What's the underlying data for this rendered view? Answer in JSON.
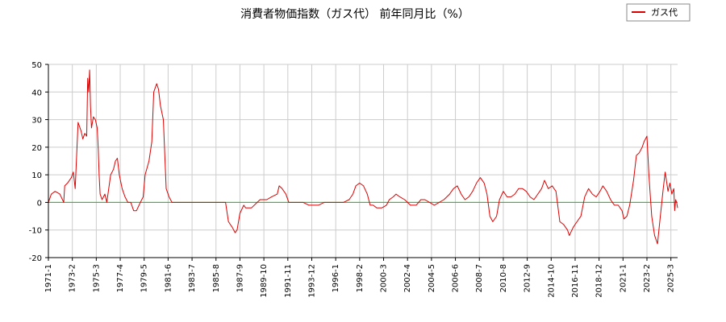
{
  "chart_data": {
    "type": "line",
    "title": "消費者物価指数（ガス代） 前年同月比（%）",
    "xlabel": "",
    "ylabel": "",
    "ylim": [
      -20,
      50
    ],
    "yticks": [
      -20,
      -10,
      0,
      10,
      20,
      30,
      40,
      50
    ],
    "xticks": [
      "1971-1",
      "1973-2",
      "1975-3",
      "1977-4",
      "1979-5",
      "1981-6",
      "1983-7",
      "1985-8",
      "1987-9",
      "1989-10",
      "1991-11",
      "1993-12",
      "1996-1",
      "1998-2",
      "2000-3",
      "2002-4",
      "2004-5",
      "2006-6",
      "2008-7",
      "2010-8",
      "2012-9",
      "2014-10",
      "2016-11",
      "2018-12",
      "2021-1",
      "2023-2",
      "2025-3"
    ],
    "xrange": [
      "1971-1",
      "2025-10"
    ],
    "grid": true,
    "legend_position": "top-right",
    "zero_line_color": "#00cc00",
    "series": [
      {
        "name": "ガス代",
        "color": "#dd0000",
        "points": [
          [
            "1971-1",
            0
          ],
          [
            "1971-4",
            3
          ],
          [
            "1971-8",
            4
          ],
          [
            "1972-1",
            3
          ],
          [
            "1972-5",
            0
          ],
          [
            "1972-6",
            6
          ],
          [
            "1972-9",
            7
          ],
          [
            "1973-1",
            9
          ],
          [
            "1973-3",
            11
          ],
          [
            "1973-5",
            5
          ],
          [
            "1973-8",
            29
          ],
          [
            "1973-11",
            26
          ],
          [
            "1974-1",
            23
          ],
          [
            "1974-3",
            25
          ],
          [
            "1974-5",
            24
          ],
          [
            "1974-6",
            45
          ],
          [
            "1974-7",
            40
          ],
          [
            "1974-8",
            48
          ],
          [
            "1974-9",
            35
          ],
          [
            "1974-10",
            27
          ],
          [
            "1974-12",
            31
          ],
          [
            "1975-2",
            30
          ],
          [
            "1975-4",
            27
          ],
          [
            "1975-5",
            20
          ],
          [
            "1975-6",
            10
          ],
          [
            "1975-7",
            3
          ],
          [
            "1975-9",
            1
          ],
          [
            "1975-12",
            3
          ],
          [
            "1976-2",
            0
          ],
          [
            "1976-4",
            5
          ],
          [
            "1976-6",
            10
          ],
          [
            "1976-9",
            12
          ],
          [
            "1976-11",
            15
          ],
          [
            "1977-1",
            16
          ],
          [
            "1977-3",
            10
          ],
          [
            "1977-6",
            5
          ],
          [
            "1977-9",
            2
          ],
          [
            "1977-12",
            0
          ],
          [
            "1978-3",
            0
          ],
          [
            "1978-6",
            -3
          ],
          [
            "1978-9",
            -3
          ],
          [
            "1979-1",
            0
          ],
          [
            "1979-4",
            2
          ],
          [
            "1979-6",
            10
          ],
          [
            "1979-10",
            15
          ],
          [
            "1980-1",
            22
          ],
          [
            "1980-3",
            40
          ],
          [
            "1980-6",
            43
          ],
          [
            "1980-8",
            41
          ],
          [
            "1980-10",
            35
          ],
          [
            "1981-1",
            30
          ],
          [
            "1981-4",
            5
          ],
          [
            "1981-7",
            2
          ],
          [
            "1981-10",
            0
          ],
          [
            "1982-6",
            0
          ],
          [
            "1983-7",
            0
          ],
          [
            "1984-1",
            0
          ],
          [
            "1985-1",
            0
          ],
          [
            "1986-6",
            0
          ],
          [
            "1986-9",
            -7
          ],
          [
            "1987-1",
            -9
          ],
          [
            "1987-4",
            -11
          ],
          [
            "1987-6",
            -10
          ],
          [
            "1987-9",
            -4
          ],
          [
            "1988-1",
            -1
          ],
          [
            "1988-3",
            -2
          ],
          [
            "1988-9",
            -2
          ],
          [
            "1989-3",
            0
          ],
          [
            "1989-6",
            1
          ],
          [
            "1990-1",
            1
          ],
          [
            "1990-6",
            2
          ],
          [
            "1990-12",
            3
          ],
          [
            "1991-2",
            6
          ],
          [
            "1991-5",
            5
          ],
          [
            "1991-9",
            3
          ],
          [
            "1991-12",
            0
          ],
          [
            "1992-3",
            0
          ],
          [
            "1992-9",
            0
          ],
          [
            "1993-3",
            0
          ],
          [
            "1993-9",
            -1
          ],
          [
            "1994-1",
            -1
          ],
          [
            "1994-7",
            -1
          ],
          [
            "1995-1",
            0
          ],
          [
            "1995-6",
            0
          ],
          [
            "1996-1",
            0
          ],
          [
            "1996-9",
            0
          ],
          [
            "1997-3",
            1
          ],
          [
            "1997-7",
            3
          ],
          [
            "1997-10",
            6
          ],
          [
            "1998-2",
            7
          ],
          [
            "1998-6",
            6
          ],
          [
            "1998-10",
            3
          ],
          [
            "1999-1",
            -1
          ],
          [
            "1999-4",
            -1
          ],
          [
            "1999-8",
            -2
          ],
          [
            "2000-1",
            -2
          ],
          [
            "2000-6",
            -1
          ],
          [
            "2000-9",
            1
          ],
          [
            "2001-1",
            2
          ],
          [
            "2001-4",
            3
          ],
          [
            "2001-8",
            2
          ],
          [
            "2002-1",
            1
          ],
          [
            "2002-4",
            0
          ],
          [
            "2002-7",
            -1
          ],
          [
            "2003-1",
            -1
          ],
          [
            "2003-6",
            1
          ],
          [
            "2003-10",
            1
          ],
          [
            "2004-3",
            0
          ],
          [
            "2004-8",
            -1
          ],
          [
            "2005-1",
            0
          ],
          [
            "2005-6",
            1
          ],
          [
            "2005-12",
            3
          ],
          [
            "2006-4",
            5
          ],
          [
            "2006-8",
            6
          ],
          [
            "2006-12",
            3
          ],
          [
            "2007-4",
            1
          ],
          [
            "2007-8",
            2
          ],
          [
            "2007-12",
            4
          ],
          [
            "2008-4",
            7
          ],
          [
            "2008-8",
            9
          ],
          [
            "2008-12",
            7
          ],
          [
            "2009-3",
            3
          ],
          [
            "2009-6",
            -5
          ],
          [
            "2009-9",
            -7
          ],
          [
            "2010-1",
            -5
          ],
          [
            "2010-4",
            1
          ],
          [
            "2010-8",
            4
          ],
          [
            "2010-12",
            2
          ],
          [
            "2011-4",
            2
          ],
          [
            "2011-8",
            3
          ],
          [
            "2011-12",
            5
          ],
          [
            "2012-4",
            5
          ],
          [
            "2012-8",
            4
          ],
          [
            "2012-12",
            2
          ],
          [
            "2013-4",
            1
          ],
          [
            "2013-8",
            3
          ],
          [
            "2013-12",
            5
          ],
          [
            "2014-3",
            8
          ],
          [
            "2014-7",
            5
          ],
          [
            "2014-11",
            6
          ],
          [
            "2015-3",
            4
          ],
          [
            "2015-7",
            -7
          ],
          [
            "2015-11",
            -8
          ],
          [
            "2016-3",
            -10
          ],
          [
            "2016-5",
            -12
          ],
          [
            "2016-9",
            -9
          ],
          [
            "2017-1",
            -7
          ],
          [
            "2017-5",
            -5
          ],
          [
            "2017-9",
            2
          ],
          [
            "2018-1",
            5
          ],
          [
            "2018-5",
            3
          ],
          [
            "2018-9",
            2
          ],
          [
            "2019-1",
            4
          ],
          [
            "2019-4",
            6
          ],
          [
            "2019-8",
            4
          ],
          [
            "2019-12",
            1
          ],
          [
            "2020-4",
            -1
          ],
          [
            "2020-8",
            -1
          ],
          [
            "2020-12",
            -3
          ],
          [
            "2021-2",
            -6
          ],
          [
            "2021-5",
            -5
          ],
          [
            "2021-8",
            -1
          ],
          [
            "2021-12",
            8
          ],
          [
            "2022-3",
            17
          ],
          [
            "2022-6",
            18
          ],
          [
            "2022-9",
            20
          ],
          [
            "2022-11",
            22
          ],
          [
            "2023-2",
            24
          ],
          [
            "2023-4",
            10
          ],
          [
            "2023-7",
            -5
          ],
          [
            "2023-10",
            -12
          ],
          [
            "2024-1",
            -15
          ],
          [
            "2024-4",
            -5
          ],
          [
            "2024-7",
            5
          ],
          [
            "2024-9",
            11
          ],
          [
            "2024-12",
            4
          ],
          [
            "2025-2",
            7
          ],
          [
            "2025-4",
            3
          ],
          [
            "2025-6",
            5
          ],
          [
            "2025-7",
            -3
          ],
          [
            "2025-8",
            1
          ],
          [
            "2025-9",
            0
          ],
          [
            "2025-10",
            -2
          ]
        ]
      }
    ]
  }
}
